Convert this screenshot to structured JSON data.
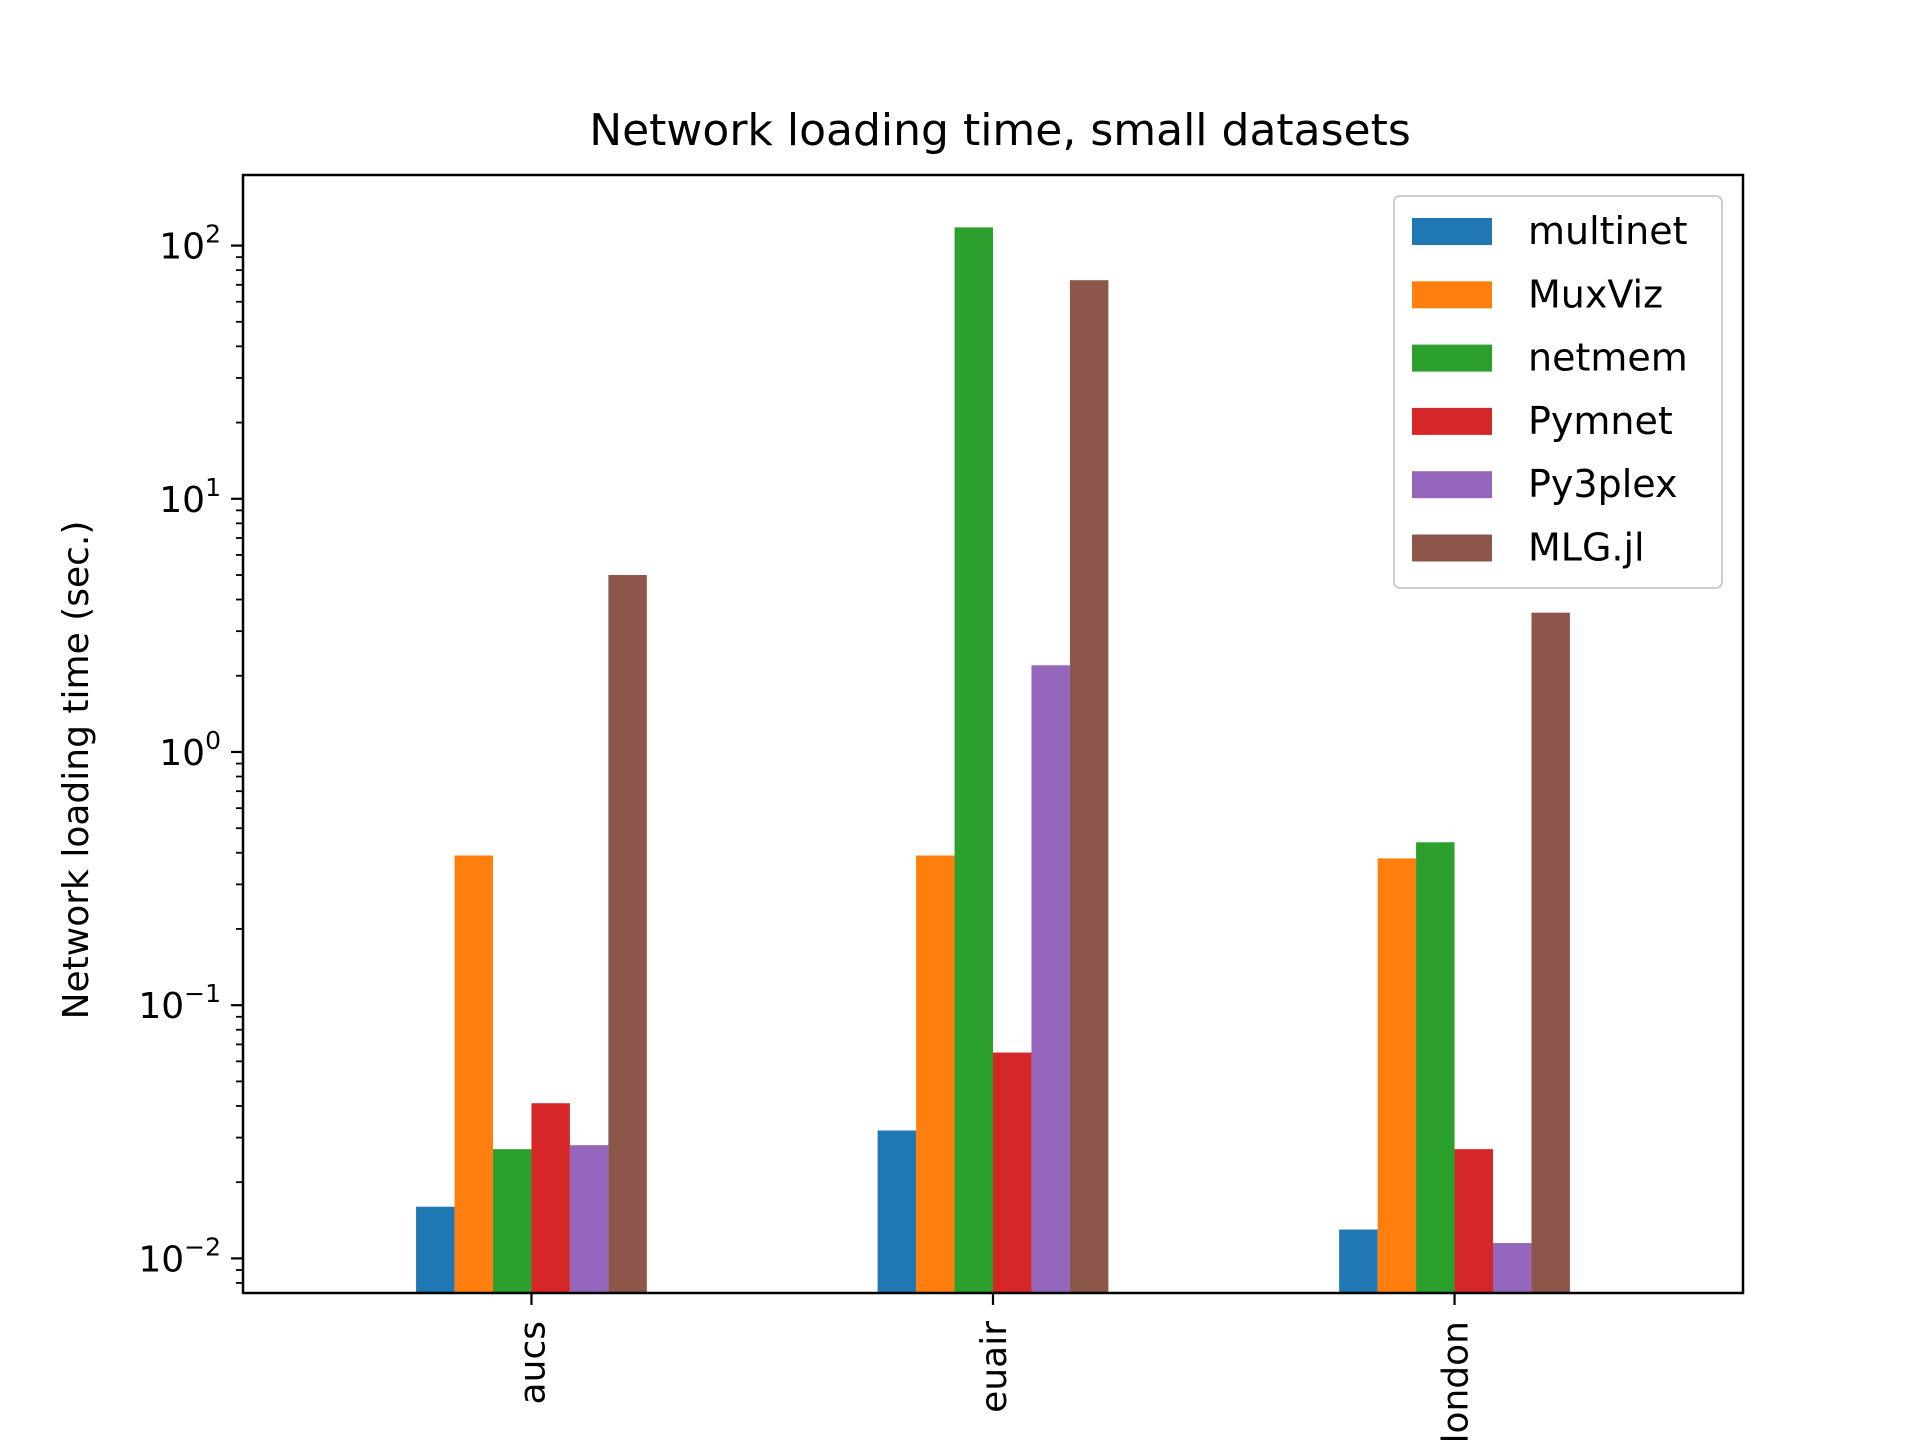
{
  "chart_data": {
    "type": "bar",
    "title": "Network loading time, small datasets",
    "xlabel": "",
    "ylabel": "Network loading time (sec.)",
    "yscale": "log",
    "ylim": [
      0.0073,
      190
    ],
    "yticks": [
      {
        "value": 0.01,
        "base": "10",
        "exp": "−2"
      },
      {
        "value": 0.1,
        "base": "10",
        "exp": "−1"
      },
      {
        "value": 1,
        "base": "10",
        "exp": "0"
      },
      {
        "value": 10,
        "base": "10",
        "exp": "1"
      },
      {
        "value": 100,
        "base": "10",
        "exp": "2"
      }
    ],
    "categories": [
      "aucs",
      "euair",
      "london"
    ],
    "grid": false,
    "legend_position": "top-right",
    "series": [
      {
        "name": "multinet",
        "color": "#1f77b4",
        "values": [
          0.016,
          0.032,
          0.013
        ]
      },
      {
        "name": "MuxViz",
        "color": "#ff7f0e",
        "values": [
          0.39,
          0.39,
          0.38
        ]
      },
      {
        "name": "netmem",
        "color": "#2ca02c",
        "values": [
          0.027,
          118,
          0.44
        ]
      },
      {
        "name": "Pymnet",
        "color": "#d62728",
        "values": [
          0.041,
          0.065,
          0.027
        ]
      },
      {
        "name": "Py3plex",
        "color": "#9467bd",
        "values": [
          0.028,
          2.2,
          0.0115
        ]
      },
      {
        "name": "MLG.jl",
        "color": "#8c564b",
        "values": [
          5.0,
          73,
          3.55
        ]
      }
    ]
  }
}
